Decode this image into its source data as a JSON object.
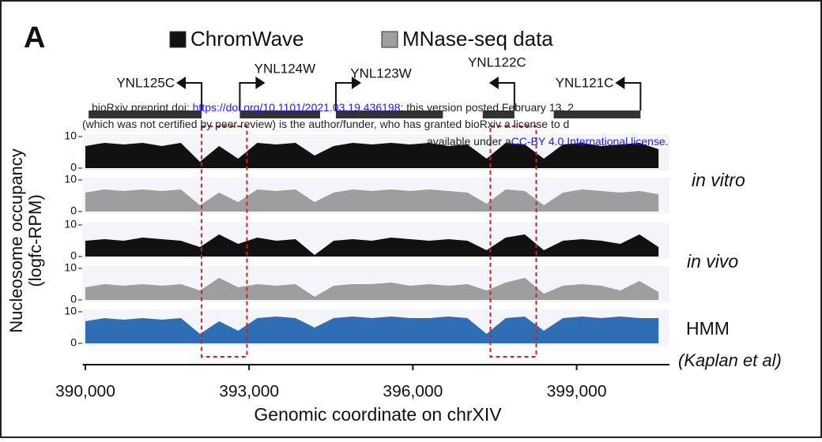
{
  "panel_label": "A",
  "watermark": {
    "line1": [
      "bioRxiv preprint doi: ",
      "https://doi.org/10.1101/2021.03.19.436198",
      "; this version posted February 13, 2"
    ],
    "line2": "(which was not certified by peer review) is the author/funder, who has granted bioRxiv a license to d",
    "line3": [
      "available under a",
      "CC-BY 4.0 International license",
      "."
    ]
  },
  "chart_data": {
    "type": "track",
    "x_label": "Genomic coordinate on chrXIV",
    "y_label": [
      "Nucleosome occupancy",
      "(logfc-RPM)"
    ],
    "xlim": [
      389950,
      400700
    ],
    "xticks": [
      {
        "value": 390000,
        "label": "390,000"
      },
      {
        "value": 393000,
        "label": "393,000"
      },
      {
        "value": 396000,
        "label": "396,000"
      },
      {
        "value": 399000,
        "label": "399,000"
      }
    ],
    "ylim": [
      0,
      10
    ],
    "yticks": [
      0,
      10
    ],
    "x": [
      390000,
      390350,
      390700,
      391050,
      391400,
      391750,
      392100,
      392450,
      392800,
      393150,
      393500,
      393850,
      394200,
      394550,
      394900,
      395250,
      395600,
      395950,
      396300,
      396650,
      397000,
      397350,
      397700,
      398050,
      398400,
      398750,
      399100,
      399450,
      399800,
      400150,
      400500
    ],
    "series": [
      {
        "name": "ChromWave",
        "color": "#111111",
        "values": [
          7,
          8,
          7.5,
          8,
          7,
          8,
          2,
          7,
          3,
          8,
          7.5,
          8,
          4,
          7,
          8,
          7.5,
          8,
          7.5,
          8,
          7,
          7.5,
          3,
          8,
          7.5,
          3,
          7.5,
          8,
          7,
          7.5,
          8,
          6
        ]
      },
      {
        "name": "MNase-seq data",
        "color": "#9e9e9e",
        "values": [
          6,
          7,
          6.5,
          7,
          6.5,
          7,
          2,
          6,
          3,
          7,
          6.5,
          7,
          3,
          6,
          7,
          6.5,
          7,
          6.5,
          7,
          6.5,
          6,
          2.5,
          7,
          6.5,
          2,
          6,
          7,
          6.5,
          6,
          6.5,
          5.5
        ]
      },
      {
        "name": "ChromWave",
        "color": "#111111",
        "values": [
          5,
          5.5,
          5,
          6,
          5.5,
          5,
          3,
          7,
          4,
          6,
          5,
          5.5,
          0.5,
          5,
          5.5,
          5,
          6,
          5.5,
          5,
          5.5,
          5,
          2,
          6,
          7,
          2,
          5,
          5.5,
          5,
          4,
          7,
          3
        ]
      },
      {
        "name": "MNase-seq data",
        "color": "#9e9e9e",
        "values": [
          4,
          5,
          4.5,
          5,
          4.5,
          5,
          3,
          7,
          4,
          5,
          4.5,
          5,
          1,
          4.5,
          5,
          5,
          5.5,
          4.5,
          5,
          4.5,
          5,
          3,
          5.5,
          7,
          2,
          4.5,
          5,
          4.5,
          3,
          6,
          2.5
        ]
      },
      {
        "name": "HMM",
        "color": "#2f6db5",
        "values": [
          7,
          8,
          7.5,
          8,
          7.5,
          8,
          3,
          7,
          4,
          8,
          8.5,
          8,
          5,
          8,
          8.5,
          8,
          8.5,
          8,
          8,
          8.5,
          8,
          3,
          8,
          8.5,
          4,
          8,
          8.5,
          8,
          8.5,
          8,
          8
        ]
      }
    ],
    "groups": [
      {
        "label": "in vitro"
      },
      {
        "label": "in vivo"
      }
    ],
    "source_note": "(Kaplan et al)",
    "genes": [
      {
        "label": "YNL125C",
        "start": 390060,
        "end": 392130,
        "strand": "-"
      },
      {
        "label": "YNL124W",
        "start": 392830,
        "end": 394300,
        "strand": "+"
      },
      {
        "label": "YNL123W",
        "start": 394590,
        "end": 396550,
        "strand": "+"
      },
      {
        "label": "YNL122C",
        "start": 397280,
        "end": 397860,
        "strand": "-"
      },
      {
        "label": "YNL121C",
        "start": 398580,
        "end": 400170,
        "strand": "-"
      }
    ],
    "highlight_regions": [
      {
        "start": 392130,
        "end": 392960
      },
      {
        "start": 397420,
        "end": 398260
      }
    ]
  }
}
